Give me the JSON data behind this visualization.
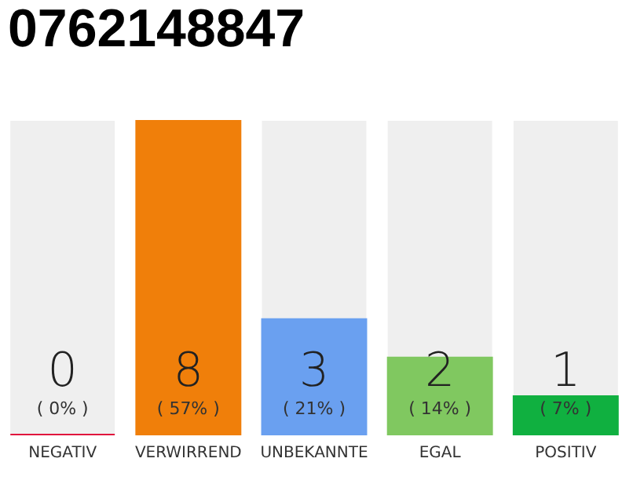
{
  "chart_data": {
    "type": "bar",
    "title": "0762148847",
    "categories": [
      "NEGATIV",
      "VERWIRREND",
      "UNBEKANNTE",
      "EGAL",
      "POSITIV"
    ],
    "values": [
      0,
      57,
      21,
      14,
      7
    ],
    "colors": [
      "#e0143c",
      "#f07f0a",
      "#6aa0f0",
      "#80c860",
      "#10b040"
    ],
    "value_labels": [
      "( 0% )",
      "( 57% )",
      "( 21% )",
      "( 14% )",
      "( 7% )"
    ],
    "annotations": [
      "0",
      "8",
      "3",
      "2",
      "1"
    ]
  }
}
